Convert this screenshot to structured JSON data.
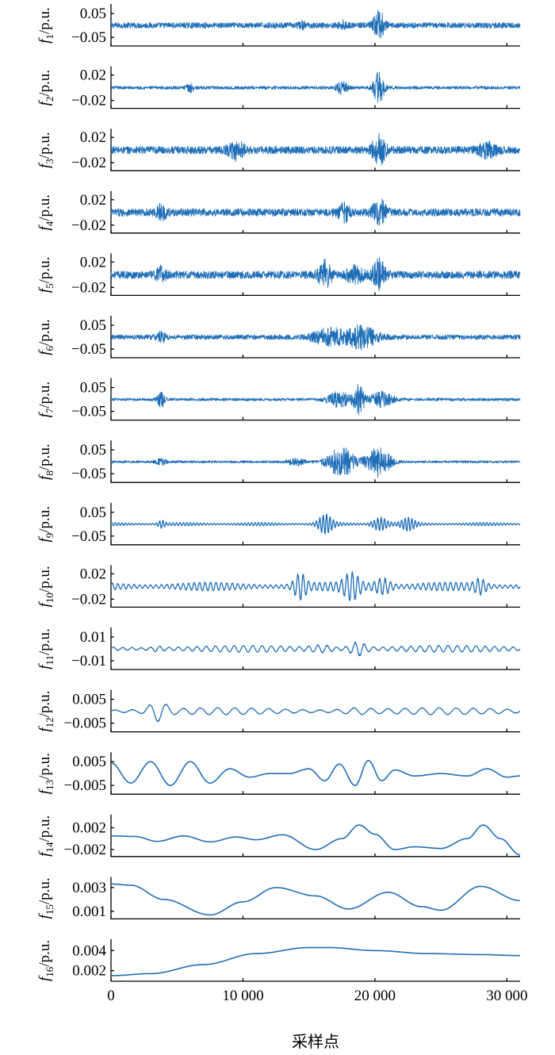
{
  "chart_data": {
    "type": "line",
    "layout": "16 vertically stacked panels sharing one x axis",
    "color": "#1f6fb8",
    "xlabel": "采样点",
    "xlim": [
      0,
      31000
    ],
    "xticks": [
      0,
      10000,
      20000,
      30000
    ],
    "xtick_labels": [
      "0",
      "10 000",
      "20 000",
      "30 000"
    ],
    "panels": [
      {
        "ylabel_main": "f",
        "ylabel_sub": "1",
        "ylabel_unit": "/p.u.",
        "yticks": [
          "0.05",
          "−0.05"
        ],
        "ytick_values": [
          0.05,
          -0.05
        ],
        "ylim": [
          -0.08,
          0.08
        ],
        "character": "broadband noise",
        "baseline": 0,
        "noise_amplitude": 0.012,
        "bursts": [
          {
            "center": 20300,
            "width": 400,
            "amplitude": 0.06
          },
          {
            "center": 17500,
            "width": 300,
            "amplitude": 0.015
          },
          {
            "center": 14500,
            "width": 300,
            "amplitude": 0.01
          }
        ]
      },
      {
        "ylabel_main": "f",
        "ylabel_sub": "2",
        "ylabel_unit": "/p.u.",
        "yticks": [
          "0.02",
          "−0.02"
        ],
        "ytick_values": [
          0.02,
          -0.02
        ],
        "ylim": [
          -0.03,
          0.03
        ],
        "character": "broadband noise",
        "baseline": 0,
        "noise_amplitude": 0.0025,
        "bursts": [
          {
            "center": 20300,
            "width": 400,
            "amplitude": 0.025
          },
          {
            "center": 17500,
            "width": 400,
            "amplitude": 0.01
          },
          {
            "center": 6000,
            "width": 300,
            "amplitude": 0.006
          }
        ]
      },
      {
        "ylabel_main": "f",
        "ylabel_sub": "3",
        "ylabel_unit": "/p.u.",
        "yticks": [
          "0.02",
          "−0.02"
        ],
        "ytick_values": [
          0.02,
          -0.02
        ],
        "ylim": [
          -0.03,
          0.03
        ],
        "character": "broadband noise",
        "baseline": 0,
        "noise_amplitude": 0.006,
        "bursts": [
          {
            "center": 20300,
            "width": 500,
            "amplitude": 0.022
          },
          {
            "center": 9500,
            "width": 600,
            "amplitude": 0.012
          },
          {
            "center": 28500,
            "width": 700,
            "amplitude": 0.01
          }
        ]
      },
      {
        "ylabel_main": "f",
        "ylabel_sub": "4",
        "ylabel_unit": "/p.u.",
        "yticks": [
          "0.02",
          "−0.02"
        ],
        "ytick_values": [
          0.02,
          -0.02
        ],
        "ylim": [
          -0.03,
          0.03
        ],
        "character": "broadband noise",
        "baseline": 0,
        "noise_amplitude": 0.006,
        "bursts": [
          {
            "center": 20300,
            "width": 500,
            "amplitude": 0.02
          },
          {
            "center": 17600,
            "width": 500,
            "amplitude": 0.012
          },
          {
            "center": 3800,
            "width": 400,
            "amplitude": 0.01
          }
        ]
      },
      {
        "ylabel_main": "f",
        "ylabel_sub": "5",
        "ylabel_unit": "/p.u.",
        "yticks": [
          "0.02",
          "−0.02"
        ],
        "ytick_values": [
          0.02,
          -0.02
        ],
        "ylim": [
          -0.03,
          0.03
        ],
        "character": "broadband noise",
        "baseline": 0,
        "noise_amplitude": 0.006,
        "bursts": [
          {
            "center": 20300,
            "width": 500,
            "amplitude": 0.024
          },
          {
            "center": 16200,
            "width": 500,
            "amplitude": 0.02
          },
          {
            "center": 18500,
            "width": 600,
            "amplitude": 0.012
          },
          {
            "center": 3800,
            "width": 400,
            "amplitude": 0.01
          }
        ]
      },
      {
        "ylabel_main": "f",
        "ylabel_sub": "6",
        "ylabel_unit": "/p.u.",
        "yticks": [
          "0.05",
          "−0.05"
        ],
        "ytick_values": [
          0.05,
          -0.05
        ],
        "ylim": [
          -0.08,
          0.08
        ],
        "character": "broadband noise",
        "baseline": 0,
        "noise_amplitude": 0.01,
        "bursts": [
          {
            "center": 16500,
            "width": 1200,
            "amplitude": 0.035
          },
          {
            "center": 19000,
            "width": 1200,
            "amplitude": 0.045
          },
          {
            "center": 3800,
            "width": 400,
            "amplitude": 0.02
          }
        ]
      },
      {
        "ylabel_main": "f",
        "ylabel_sub": "7",
        "ylabel_unit": "/p.u.",
        "yticks": [
          "0.05",
          "−0.05"
        ],
        "ytick_values": [
          0.05,
          -0.05
        ],
        "ylim": [
          -0.08,
          0.08
        ],
        "character": "broadband noise",
        "baseline": 0,
        "noise_amplitude": 0.006,
        "bursts": [
          {
            "center": 18800,
            "width": 400,
            "amplitude": 0.06
          },
          {
            "center": 17300,
            "width": 900,
            "amplitude": 0.03
          },
          {
            "center": 20500,
            "width": 900,
            "amplitude": 0.03
          },
          {
            "center": 3800,
            "width": 300,
            "amplitude": 0.03
          }
        ]
      },
      {
        "ylabel_main": "f",
        "ylabel_sub": "8",
        "ylabel_unit": "/p.u.",
        "yticks": [
          "0.05",
          "−0.05"
        ],
        "ytick_values": [
          0.05,
          -0.05
        ],
        "ylim": [
          -0.08,
          0.08
        ],
        "character": "broadband noise",
        "baseline": 0,
        "noise_amplitude": 0.005,
        "bursts": [
          {
            "center": 17500,
            "width": 1100,
            "amplitude": 0.06
          },
          {
            "center": 20300,
            "width": 900,
            "amplitude": 0.06
          },
          {
            "center": 14000,
            "width": 600,
            "amplitude": 0.015
          },
          {
            "center": 3800,
            "width": 400,
            "amplitude": 0.012
          }
        ]
      },
      {
        "ylabel_main": "f",
        "ylabel_sub": "9",
        "ylabel_unit": "/p.u.",
        "yticks": [
          "0.05",
          "−0.05"
        ],
        "ytick_values": [
          0.05,
          -0.05
        ],
        "ylim": [
          -0.08,
          0.08
        ],
        "character": "oscillation",
        "baseline": 0,
        "amplitude": 0.006,
        "cycles": 120,
        "bursts": [
          {
            "center": 16200,
            "width": 600,
            "amplitude": 0.035
          },
          {
            "center": 20300,
            "width": 600,
            "amplitude": 0.05
          },
          {
            "center": 22500,
            "width": 600,
            "amplitude": 0.02
          },
          {
            "center": 3800,
            "width": 300,
            "amplitude": 0.02
          }
        ]
      },
      {
        "ylabel_main": "f",
        "ylabel_sub": "10",
        "ylabel_unit": "/p.u.",
        "yticks": [
          "0.02",
          "−0.02"
        ],
        "ytick_values": [
          0.02,
          -0.02
        ],
        "ylim": [
          -0.03,
          0.03
        ],
        "character": "oscillation",
        "baseline": 0,
        "amplitude": 0.006,
        "cycles": 75,
        "bursts": [
          {
            "center": 14300,
            "width": 500,
            "amplitude": 0.022
          },
          {
            "center": 18300,
            "width": 700,
            "amplitude": 0.02
          },
          {
            "center": 20600,
            "width": 700,
            "amplitude": 0.024
          },
          {
            "center": 28000,
            "width": 500,
            "amplitude": 0.012
          }
        ]
      },
      {
        "ylabel_main": "f",
        "ylabel_sub": "11",
        "ylabel_unit": "/p.u.",
        "yticks": [
          "0.01",
          "−0.01"
        ],
        "ytick_values": [
          0.01,
          -0.01
        ],
        "ylim": [
          -0.016,
          0.016
        ],
        "character": "oscillation",
        "baseline": 0,
        "amplitude": 0.0025,
        "cycles": 44,
        "bursts": [
          {
            "center": 18700,
            "width": 700,
            "amplitude": 0.011
          },
          {
            "center": 16000,
            "width": 900,
            "amplitude": 0.004
          },
          {
            "center": 3500,
            "width": 500,
            "amplitude": 0.003
          }
        ]
      },
      {
        "ylabel_main": "f",
        "ylabel_sub": "12",
        "ylabel_unit": "/p.u.",
        "yticks": [
          "0.005",
          "−0.005"
        ],
        "ytick_values": [
          0.005,
          -0.005
        ],
        "ylim": [
          -0.008,
          0.008
        ],
        "character": "oscillation",
        "baseline": 0,
        "amplitude": 0.0013,
        "cycles": 24,
        "bursts": [
          {
            "center": 3500,
            "width": 800,
            "amplitude": 0.005
          },
          {
            "center": 18500,
            "width": 1200,
            "amplitude": 0.0015
          }
        ]
      },
      {
        "ylabel_main": "f",
        "ylabel_sub": "13",
        "ylabel_unit": "/p.u.",
        "yticks": [
          "0.005",
          "−0.005"
        ],
        "ytick_values": [
          0.005,
          -0.005
        ],
        "ylim": [
          -0.008,
          0.008
        ],
        "character": "smooth curve",
        "curve_points": [
          [
            0,
            0.0045
          ],
          [
            1500,
            -0.004
          ],
          [
            3000,
            0.005
          ],
          [
            4500,
            -0.005
          ],
          [
            6000,
            0.005
          ],
          [
            7500,
            -0.004
          ],
          [
            9000,
            0.002
          ],
          [
            10500,
            -0.0015
          ],
          [
            12000,
            0.0
          ],
          [
            13500,
            0.0
          ],
          [
            15000,
            0.002
          ],
          [
            16200,
            -0.003
          ],
          [
            17300,
            0.004
          ],
          [
            18500,
            -0.005
          ],
          [
            19500,
            0.0055
          ],
          [
            20500,
            -0.003
          ],
          [
            21500,
            0.0015
          ],
          [
            23000,
            -0.001
          ],
          [
            25000,
            0.0
          ],
          [
            27000,
            -0.001
          ],
          [
            28500,
            0.002
          ],
          [
            30000,
            -0.0015
          ],
          [
            31000,
            -0.001
          ]
        ]
      },
      {
        "ylabel_main": "f",
        "ylabel_sub": "14",
        "ylabel_unit": "/p.u.",
        "yticks": [
          "0.002",
          "−0.002"
        ],
        "ytick_values": [
          0.002,
          -0.002
        ],
        "ylim": [
          -0.003,
          0.004
        ],
        "character": "smooth curve",
        "curve_points": [
          [
            0,
            0.0005
          ],
          [
            1800,
            0.0004
          ],
          [
            3500,
            -0.0005
          ],
          [
            5500,
            0.0005
          ],
          [
            7500,
            -0.0006
          ],
          [
            9500,
            0.0003
          ],
          [
            11000,
            -0.0002
          ],
          [
            13000,
            0.0007
          ],
          [
            15500,
            -0.002
          ],
          [
            17500,
            0.0
          ],
          [
            18800,
            0.0025
          ],
          [
            20000,
            0.0008
          ],
          [
            21500,
            -0.002
          ],
          [
            23000,
            -0.0015
          ],
          [
            25000,
            -0.0018
          ],
          [
            27000,
            0.0
          ],
          [
            28200,
            0.0025
          ],
          [
            29500,
            0.0
          ],
          [
            31000,
            -0.003
          ]
        ]
      },
      {
        "ylabel_main": "f",
        "ylabel_sub": "15",
        "ylabel_unit": "/p.u.",
        "yticks": [
          "0.003",
          "0.001"
        ],
        "ytick_values": [
          0.003,
          0.001
        ],
        "ylim": [
          0.0005,
          0.0037
        ],
        "character": "smooth curve",
        "curve_points": [
          [
            0,
            0.0033
          ],
          [
            1500,
            0.0032
          ],
          [
            4000,
            0.002
          ],
          [
            7500,
            0.0007
          ],
          [
            10000,
            0.0018
          ],
          [
            12500,
            0.003
          ],
          [
            15500,
            0.0023
          ],
          [
            18000,
            0.0012
          ],
          [
            21000,
            0.0026
          ],
          [
            23500,
            0.0014
          ],
          [
            25000,
            0.0011
          ],
          [
            28000,
            0.0031
          ],
          [
            31000,
            0.0019
          ]
        ]
      },
      {
        "ylabel_main": "f",
        "ylabel_sub": "16",
        "ylabel_unit": "/p.u.",
        "yticks": [
          "0.004",
          "0.002"
        ],
        "ytick_values": [
          0.004,
          0.002
        ],
        "ylim": [
          0.0011,
          0.0049
        ],
        "character": "smooth curve",
        "curve_points": [
          [
            0,
            0.0015
          ],
          [
            3000,
            0.0017
          ],
          [
            7000,
            0.0026
          ],
          [
            11000,
            0.0037
          ],
          [
            15000,
            0.0043
          ],
          [
            16500,
            0.0043
          ],
          [
            20000,
            0.004
          ],
          [
            24000,
            0.0037
          ],
          [
            28000,
            0.0036
          ],
          [
            31000,
            0.0035
          ]
        ]
      }
    ]
  }
}
